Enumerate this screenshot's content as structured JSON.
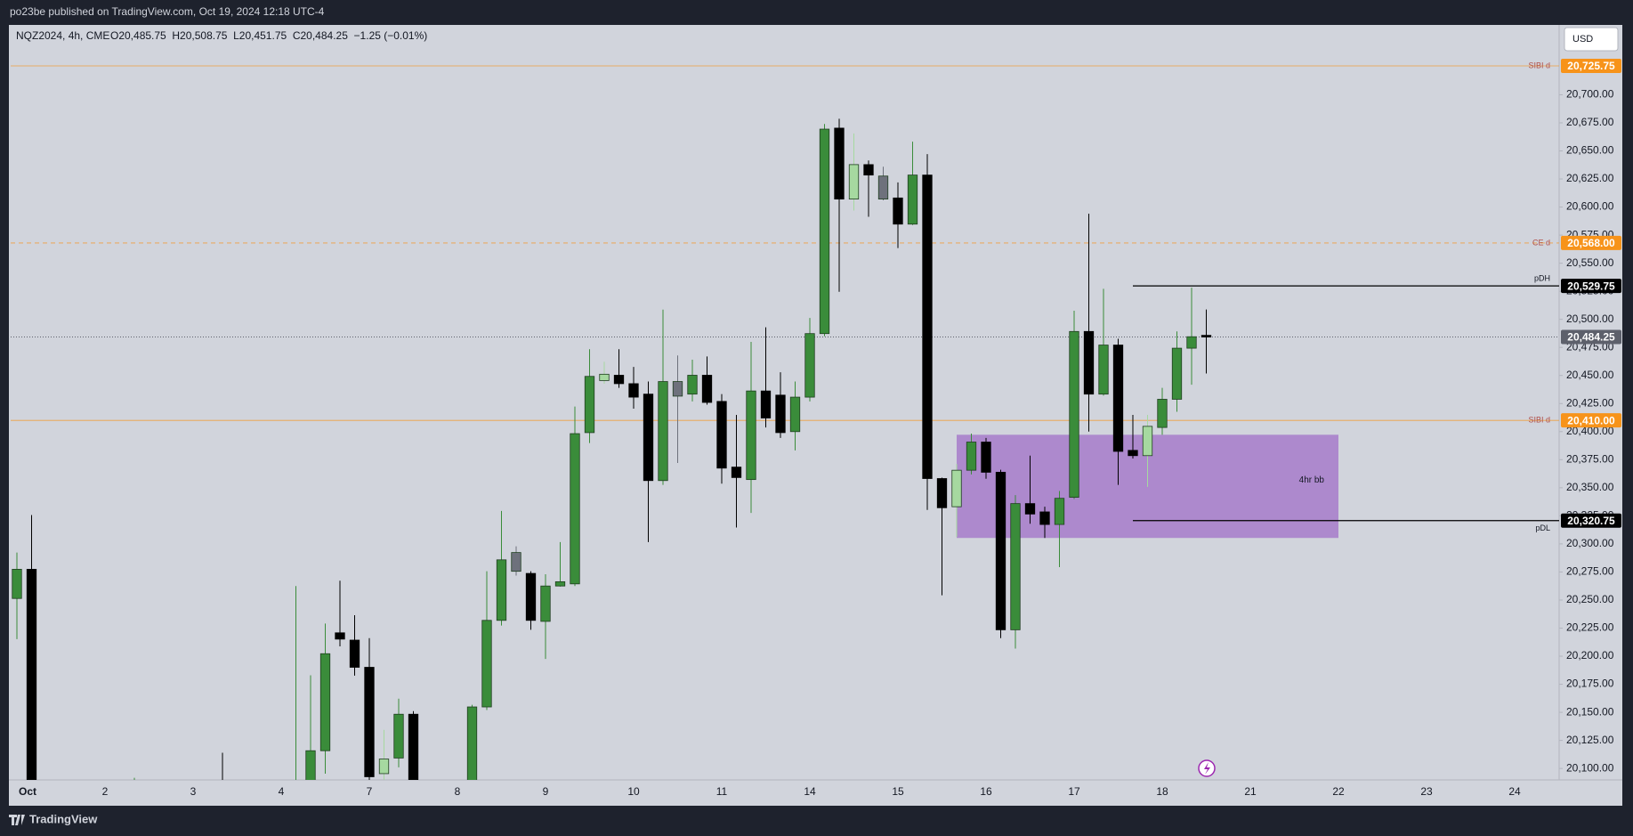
{
  "header": {
    "publisher": "po23be published on TradingView.com, Oct 19, 2024 12:18 UTC-4"
  },
  "footer": {
    "brand": "TradingView"
  },
  "currency": "USD",
  "chart_data": {
    "type": "candlestick",
    "symbol": "NQZ2024, 4h, CME",
    "ohlc_legend": "O20,485.75  H20,508.75  L20,451.75  C20,484.25  −1.25 (−0.01%)",
    "categories": [
      "Oct",
      null,
      null,
      null,
      null,
      null,
      "2",
      null,
      null,
      null,
      null,
      null,
      "3",
      null,
      null,
      null,
      null,
      null,
      "4",
      null,
      null,
      null,
      null,
      null,
      "7",
      null,
      null,
      null,
      null,
      null,
      "8",
      null,
      null,
      null,
      null,
      null,
      "9",
      null,
      null,
      null,
      null,
      null,
      "10",
      null,
      null,
      null,
      null,
      null,
      "11",
      null,
      null,
      null,
      null,
      null,
      "14",
      null,
      null,
      null,
      null,
      null,
      "15",
      null,
      null,
      null,
      null,
      null,
      "16",
      null,
      null,
      null,
      null,
      null,
      "17",
      null,
      null,
      null,
      null,
      null,
      "18",
      null,
      null,
      null,
      null,
      null,
      "21",
      null,
      null,
      null,
      null,
      null,
      "22",
      null,
      null,
      null,
      null,
      null,
      "23",
      null,
      null,
      null,
      null,
      null,
      "24",
      null,
      null
    ],
    "open": [
      20251.4,
      20277.4,
      null,
      null,
      null,
      null,
      null,
      null,
      20075,
      null,
      null,
      null,
      null,
      null,
      20080,
      null,
      null,
      null,
      null,
      20070,
      20080,
      20115.8,
      20220.8,
      20214.3,
      20190.1,
      20095.4,
      20109.3,
      20148.3,
      null,
      null,
      null,
      20060,
      20154.8,
      20231.9,
      20292.3,
      20273.7,
      20231.0,
      20262.5,
      20264.4,
      20399.1,
      20445.5,
      20450.2,
      20442.7,
      20433.4,
      20356.4,
      20444.6,
      20433.4,
      20450.2,
      20426.9,
      20368.4,
      20357.3,
      20436.2,
      20432.5,
      20400.0,
      20430.7,
      20487.3,
      20670.3,
      20607.1,
      20637.8,
      20627.6,
      20608.1,
      20584.8,
      20628.5,
      20358.2,
      20333.1,
      20365.6,
      20390.7,
      20363.8,
      20223.5,
      20335.9,
      20328.5,
      20317.3,
      20341.5,
      20489.2,
      20433.4,
      20477.1,
      20383.3,
      20378.6,
      20403.7,
      20428.8,
      20474.3,
      20485.75,
      null,
      null,
      null,
      null,
      null,
      null,
      null,
      null,
      null,
      null,
      null,
      null,
      null,
      null,
      null,
      null,
      null,
      null,
      null,
      null,
      null,
      null,
      null
    ],
    "high": [
      20292.3,
      20325.7,
      null,
      null,
      null,
      null,
      null,
      null,
      20091.7,
      null,
      null,
      null,
      null,
      null,
      20114,
      null,
      null,
      null,
      null,
      20262.5,
      20183,
      20229.1,
      20267.2,
      20236.5,
      20216.1,
      20134.4,
      20162.2,
      20151.1,
      null,
      null,
      null,
      20156.7,
      20275.6,
      20329.4,
      20297.8,
      20275.6,
      20273,
      20301.6,
      20422.3,
      20473.4,
      20462.2,
      20473.4,
      20457.6,
      20444.6,
      20508.7,
      20467.8,
      20464.1,
      20466.9,
      20433.4,
      20414.9,
      20479.9,
      20492.9,
      20452.9,
      20444.6,
      20501.2,
      20674.0,
      20678.6,
      20665.6,
      20641.5,
      20635.9,
      20622.0,
      20658.2,
      20647.1,
      20359,
      20371.2,
      20398.2,
      20394.4,
      20366,
      20343.4,
      20378.6,
      20333.1,
      20347.1,
      20507.7,
      20594.1,
      20527.2,
      20482.7,
      20414.9,
      20414.9,
      20439.0,
      20489.2,
      20528.2,
      20508.75,
      null,
      null,
      null,
      null,
      null,
      null,
      null,
      null,
      null,
      null,
      null,
      null,
      null,
      null,
      null,
      null,
      null,
      null,
      null,
      null,
      null,
      null,
      null
    ],
    "low": [
      20215.2,
      20040,
      null,
      null,
      null,
      null,
      null,
      null,
      20050,
      null,
      null,
      null,
      null,
      null,
      20050,
      null,
      null,
      null,
      null,
      20050,
      20060,
      20095.4,
      20208.7,
      20182.7,
      20085,
      20085,
      20101.0,
      20050,
      null,
      null,
      null,
      20040,
      20152,
      20227.3,
      20271.8,
      20223.5,
      20197.5,
      20262,
      20262.5,
      20389.8,
      20442.7,
      20439.0,
      20420.4,
      20301.6,
      20352.6,
      20372.1,
      20426.9,
      20424,
      20353.6,
      20314.6,
      20327.6,
      20403.7,
      20394.4,
      20383.3,
      20426.9,
      20485,
      20524.5,
      20596.9,
      20591.3,
      20606,
      20563.5,
      20584,
      20330.3,
      20254.2,
      20306.2,
      20361.9,
      20358,
      20216.1,
      20206.8,
      20318,
      20305.3,
      20279.3,
      20340,
      20400.0,
      20432,
      20352.6,
      20376,
      20350.8,
      20397.2,
      20417.7,
      20441.8,
      20451.75,
      null,
      null,
      null,
      null,
      null,
      null,
      null,
      null,
      null,
      null,
      null,
      null,
      null,
      null,
      null,
      null,
      null,
      null,
      null,
      null,
      null,
      null,
      null
    ],
    "close": [
      20277.4,
      20060,
      null,
      null,
      null,
      null,
      null,
      null,
      20070,
      null,
      null,
      null,
      null,
      null,
      20070,
      null,
      null,
      null,
      null,
      20080,
      20115.8,
      20202.2,
      20215.2,
      20190.1,
      20092.6,
      20108.4,
      20148.3,
      20070,
      null,
      null,
      null,
      20154.8,
      20231.9,
      20285.8,
      20275.6,
      20231.9,
      20262.5,
      20266.3,
      20398.2,
      20449.2,
      20451.1,
      20442.7,
      20430.7,
      20356.4,
      20444.6,
      20431.6,
      20450.2,
      20426.0,
      20367.5,
      20359.1,
      20436.2,
      20412.1,
      20399.1,
      20430.7,
      20487.3,
      20669.4,
      20607.1,
      20637.8,
      20628.5,
      20607.1,
      20584.8,
      20628.5,
      20358.2,
      20332.2,
      20365.6,
      20390.7,
      20363.8,
      20223.5,
      20335.9,
      20326.6,
      20317.3,
      20340.6,
      20489.2,
      20433.4,
      20477.1,
      20382.4,
      20378.6,
      20404.7,
      20428.8,
      20474.3,
      20484.5,
      20484.25,
      null,
      null,
      null,
      null,
      null,
      null,
      null,
      null,
      null,
      null,
      null,
      null,
      null,
      null,
      null,
      null,
      null,
      null,
      null,
      null,
      null,
      null,
      null
    ],
    "colors": [
      "#3a8c3a",
      "#000000",
      null,
      null,
      null,
      null,
      null,
      null,
      "#3a8c3a",
      null,
      null,
      null,
      null,
      null,
      "#000000",
      null,
      null,
      null,
      null,
      "#3a8c3a",
      "#3a8c3a",
      "#3a8c3a",
      "#000000",
      "#000000",
      "#000000",
      "#a6d9a0",
      "#3a8c3a",
      "#000000",
      null,
      null,
      null,
      "#3a8c3a",
      "#3a8c3a",
      "#3a8c3a",
      "#6e717c",
      "#000000",
      "#3a8c3a",
      "#3a8c3a",
      "#3a8c3a",
      "#3a8c3a",
      "#a6d9a0",
      "#000000",
      "#000000",
      "#000000",
      "#3a8c3a",
      "#6e717c",
      "#3a8c3a",
      "#000000",
      "#000000",
      "#000000",
      "#3a8c3a",
      "#000000",
      "#000000",
      "#3a8c3a",
      "#3a8c3a",
      "#3a8c3a",
      "#000000",
      "#a6d9a0",
      "#000000",
      "#6e717c",
      "#000000",
      "#3a8c3a",
      "#000000",
      "#000000",
      "#a6d9a0",
      "#3a8c3a",
      "#000000",
      "#000000",
      "#3a8c3a",
      "#000000",
      "#000000",
      "#3a8c3a",
      "#3a8c3a",
      "#000000",
      "#3a8c3a",
      "#000000",
      "#000000",
      "#a6d9a0",
      "#3a8c3a",
      "#3a8c3a",
      "#3a8c3a",
      "#000000",
      null,
      null,
      null,
      null,
      null,
      null,
      null,
      null,
      null,
      null,
      null,
      null,
      null,
      null,
      null,
      null,
      null,
      null,
      null,
      null,
      null,
      null,
      null
    ],
    "ylim": [
      20089.8,
      20762.2
    ],
    "yticks": [
      {
        "value": 20100,
        "label": "20,100.00"
      },
      {
        "value": 20125,
        "label": "20,125.00"
      },
      {
        "value": 20150,
        "label": "20,150.00"
      },
      {
        "value": 20175,
        "label": "20,175.00"
      },
      {
        "value": 20200,
        "label": "20,200.00"
      },
      {
        "value": 20225,
        "label": "20,225.00"
      },
      {
        "value": 20250,
        "label": "20,250.00"
      },
      {
        "value": 20275,
        "label": "20,275.00"
      },
      {
        "value": 20300,
        "label": "20,300.00"
      },
      {
        "value": 20325,
        "label": "20,325.00"
      },
      {
        "value": 20350,
        "label": "20,350.00"
      },
      {
        "value": 20375,
        "label": "20,375.00"
      },
      {
        "value": 20400,
        "label": "20,400.00"
      },
      {
        "value": 20425,
        "label": "20,425.00"
      },
      {
        "value": 20450,
        "label": "20,450.00"
      },
      {
        "value": 20475,
        "label": "20,475.00"
      },
      {
        "value": 20500,
        "label": "20,500.00"
      },
      {
        "value": 20525,
        "label": "20,525.00"
      },
      {
        "value": 20550,
        "label": "20,550.00"
      },
      {
        "value": 20575,
        "label": "20,575.00"
      },
      {
        "value": 20600,
        "label": "20,600.00"
      },
      {
        "value": 20625,
        "label": "20,625.00"
      },
      {
        "value": 20650,
        "label": "20,650.00"
      },
      {
        "value": 20675,
        "label": "20,675.00"
      },
      {
        "value": 20700,
        "label": "20,700.00"
      }
    ],
    "grid": false,
    "levels": [
      {
        "label": "SIBI d",
        "value": 20725.75,
        "value_label": "20,725.75",
        "color": "#f7931a",
        "style": "solid"
      },
      {
        "label": "CE d",
        "value": 20568,
        "value_label": "20,568.00",
        "color": "#f7931a",
        "style": "dashed"
      },
      {
        "label": "pDH",
        "value": 20529.75,
        "value_label": "20,529.75",
        "color": "#000000",
        "style": "solid"
      },
      {
        "label": "SIBI d",
        "value": 20410,
        "value_label": "20,410.00",
        "color": "#f7931a",
        "style": "solid"
      },
      {
        "label": "pDL",
        "value": 20320.75,
        "value_label": "20,320.75",
        "color": "#000000",
        "style": "solid"
      }
    ],
    "last_price": {
      "value": 20484.25,
      "label": "20,484.25",
      "color": "#5d606b"
    },
    "box": {
      "label": "4hr bb",
      "top": 20397.2,
      "bottom": 20305.3,
      "color": "#a77bca"
    }
  }
}
